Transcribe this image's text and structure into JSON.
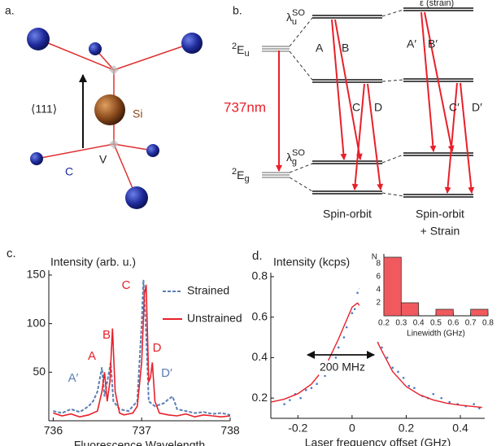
{
  "panel_a": {
    "label": "a.",
    "axis": "⟨111⟩",
    "si": "Si",
    "v": "V",
    "c": "C"
  },
  "panel_b": {
    "label": "b.",
    "strain": "ε (strain)",
    "lambda_u": {
      "base": "λ",
      "sub": "u",
      "sup": "SO"
    },
    "lambda_g": {
      "base": "λ",
      "sub": "g",
      "sup": "SO"
    },
    "state_u": {
      "sup": "2",
      "base": "E",
      "sub": "u"
    },
    "state_g": {
      "sup": "2",
      "base": "E",
      "sub": "g"
    },
    "wavelength": "737nm",
    "transitions": [
      "A",
      "B",
      "C",
      "D",
      "A′",
      "B′",
      "C′",
      "D′"
    ],
    "column_1": "Spin-orbit",
    "column_2": "Spin-orbit",
    "column_2_note": "+ Strain"
  },
  "chart_data": [
    {
      "type": "line",
      "label": "c.",
      "ylabel": "Intensity (arb. u.)",
      "xlabel": "Fluorescence Wavelength",
      "xlim": [
        735.95,
        738.0
      ],
      "xticks": [
        736,
        737,
        738
      ],
      "ylim": [
        0,
        155
      ],
      "yticks": [
        50,
        100,
        150
      ],
      "series": [
        {
          "name": "Strained",
          "color": "#5b7fb4",
          "dashed": true,
          "x": [
            736.0,
            736.1,
            736.2,
            736.3,
            736.4,
            736.45,
            736.5,
            736.55,
            736.58,
            736.62,
            736.65,
            736.68,
            736.75,
            736.85,
            736.95,
            737.0,
            737.02,
            737.05,
            737.08,
            737.15,
            737.25,
            737.3,
            737.35,
            737.4,
            737.5,
            737.6,
            737.7,
            737.8,
            737.9,
            738.0
          ],
          "values": [
            10,
            8,
            12,
            9,
            15,
            20,
            30,
            55,
            25,
            45,
            60,
            20,
            12,
            10,
            20,
            100,
            145,
            90,
            20,
            15,
            18,
            22,
            25,
            12,
            10,
            8,
            9,
            7,
            8,
            6
          ]
        },
        {
          "name": "Unstrained",
          "color": "#e8202a",
          "dashed": false,
          "x": [
            736.0,
            736.1,
            736.2,
            736.3,
            736.4,
            736.5,
            736.55,
            736.58,
            736.61,
            736.64,
            736.67,
            736.7,
            736.75,
            736.8,
            736.9,
            736.95,
            737.0,
            737.03,
            737.05,
            737.08,
            737.1,
            737.12,
            737.15,
            737.2,
            737.3,
            737.4,
            737.5,
            737.6,
            737.7,
            737.8,
            737.9,
            738.0
          ],
          "values": [
            8,
            5,
            7,
            4,
            6,
            10,
            30,
            50,
            20,
            40,
            95,
            30,
            8,
            6,
            8,
            15,
            60,
            130,
            140,
            40,
            45,
            60,
            20,
            8,
            6,
            5,
            7,
            4,
            6,
            5,
            4,
            5
          ]
        }
      ],
      "annotations": [
        {
          "text": "A",
          "color": "#e8202a"
        },
        {
          "text": "B",
          "color": "#e8202a"
        },
        {
          "text": "C",
          "color": "#e8202a"
        },
        {
          "text": "D",
          "color": "#e8202a"
        },
        {
          "text": "A′",
          "color": "#5b7fb4"
        },
        {
          "text": "D′",
          "color": "#5b7fb4"
        }
      ]
    },
    {
      "type": "scatter",
      "label": "d.",
      "ylabel": "Intensity (kcps)",
      "xlabel": "Laser frequency offset (GHz)",
      "xlim": [
        -0.3,
        0.49
      ],
      "xticks": [
        -0.2,
        0,
        0.2,
        0.4
      ],
      "ylim": [
        0.1,
        0.82
      ],
      "yticks": [
        0.2,
        0.4,
        0.6,
        0.8
      ],
      "points": {
        "color": "#4a7cc4",
        "x": [
          -0.25,
          -0.23,
          -0.21,
          -0.19,
          -0.17,
          -0.15,
          -0.13,
          -0.11,
          -0.1,
          -0.08,
          -0.06,
          -0.05,
          -0.03,
          -0.02,
          0,
          0.01,
          0.02,
          0.03,
          0.04,
          0.05,
          0.06,
          0.08,
          0.1,
          0.11,
          0.13,
          0.15,
          0.17,
          0.19,
          0.21,
          0.23,
          0.26,
          0.28,
          0.3,
          0.33,
          0.36,
          0.39,
          0.42,
          0.45,
          0.47
        ],
        "values": [
          0.17,
          0.19,
          0.22,
          0.2,
          0.24,
          0.25,
          0.27,
          0.33,
          0.31,
          0.36,
          0.4,
          0.45,
          0.5,
          0.55,
          0.62,
          0.64,
          0.72,
          0.74,
          0.7,
          0.65,
          0.6,
          0.57,
          0.52,
          0.45,
          0.4,
          0.35,
          0.33,
          0.3,
          0.26,
          0.25,
          0.21,
          0.2,
          0.22,
          0.2,
          0.18,
          0.17,
          0.16,
          0.17,
          0.15
        ]
      },
      "fit": {
        "color": "#e8202a",
        "x": [
          -0.3,
          -0.25,
          -0.2,
          -0.15,
          -0.1,
          -0.05,
          0,
          0.02,
          0.05,
          0.1,
          0.15,
          0.2,
          0.25,
          0.3,
          0.35,
          0.4,
          0.45,
          0.48
        ],
        "values": [
          0.18,
          0.195,
          0.222,
          0.269,
          0.351,
          0.492,
          0.649,
          0.67,
          0.625,
          0.459,
          0.331,
          0.257,
          0.216,
          0.191,
          0.175,
          0.165,
          0.158,
          0.154
        ]
      },
      "annotation": "200 MHz"
    },
    {
      "type": "histogram",
      "ylabel": "N",
      "xlabel": "Linewidth (GHz)",
      "color": "#f05a5e",
      "bins": [
        0.2,
        0.3,
        0.4,
        0.5,
        0.6,
        0.7,
        0.8
      ],
      "values": [
        9,
        2,
        0,
        1,
        0,
        1
      ],
      "xlim": [
        0.2,
        0.8
      ],
      "xticks": [
        0.2,
        0.3,
        0.4,
        0.5,
        0.6,
        0.7,
        0.8
      ],
      "ylim": [
        0,
        9.5
      ],
      "yticks": [
        2,
        4,
        6,
        8
      ]
    }
  ]
}
